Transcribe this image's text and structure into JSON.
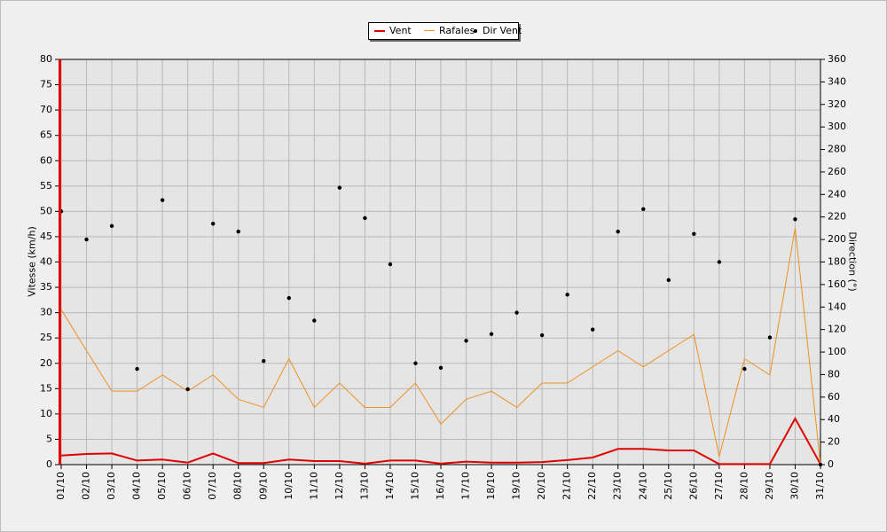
{
  "chart_data": {
    "type": "line",
    "categories": [
      "01/10",
      "02/10",
      "03/10",
      "04/10",
      "05/10",
      "06/10",
      "07/10",
      "08/10",
      "09/10",
      "10/10",
      "11/10",
      "12/10",
      "13/10",
      "14/10",
      "15/10",
      "16/10",
      "17/10",
      "18/10",
      "19/10",
      "20/10",
      "21/10",
      "22/10",
      "23/10",
      "24/10",
      "25/10",
      "26/10",
      "27/10",
      "28/10",
      "29/10",
      "30/10",
      "31/10"
    ],
    "series": [
      {
        "name": "Vent",
        "axis": "left",
        "color": "#e00000",
        "values": [
          1.8,
          2.1,
          2.2,
          0.8,
          1.0,
          0.4,
          2.2,
          0.3,
          0.3,
          1.0,
          0.7,
          0.7,
          0.2,
          0.8,
          0.8,
          0.2,
          0.6,
          0.4,
          0.4,
          0.5,
          0.9,
          1.4,
          3.1,
          3.1,
          2.8,
          2.8,
          0.1,
          0.1,
          0.1,
          9.1,
          0.1
        ]
      },
      {
        "name": "Rafales",
        "axis": "left",
        "color": "#f09020",
        "values": [
          30.6,
          22.5,
          14.5,
          14.5,
          17.7,
          14.5,
          17.7,
          12.9,
          11.3,
          20.9,
          11.3,
          16.1,
          11.3,
          11.3,
          16.1,
          8.0,
          12.9,
          14.5,
          11.3,
          16.1,
          16.1,
          19.3,
          22.5,
          19.3,
          22.5,
          25.7,
          1.6,
          20.9,
          17.7,
          46.7,
          0.0
        ]
      },
      {
        "name": "Dir Vent",
        "axis": "right",
        "color": "#000000",
        "marker": "dot",
        "values": [
          225,
          200,
          212,
          85,
          235,
          67,
          214,
          207,
          92,
          148,
          128,
          246,
          219,
          178,
          90,
          86,
          110,
          116,
          135,
          115,
          151,
          120,
          207,
          227,
          164,
          205,
          180,
          85,
          113,
          218,
          0
        ]
      }
    ],
    "ylabel": "Vitesse (km/h)",
    "ylabel_right": "Direction (°)",
    "ylim": [
      0,
      80
    ],
    "yticks": [
      0,
      5,
      10,
      15,
      20,
      25,
      30,
      35,
      40,
      45,
      50,
      55,
      60,
      65,
      70,
      75,
      80
    ],
    "ylim_right": [
      0,
      360
    ],
    "yticks_right": [
      0,
      20,
      40,
      60,
      80,
      100,
      120,
      140,
      160,
      180,
      200,
      220,
      240,
      260,
      280,
      300,
      320,
      340,
      360
    ],
    "grid": true,
    "legend_position": "top-center"
  },
  "legend": [
    {
      "label": "Vent"
    },
    {
      "label": "Rafales"
    },
    {
      "label": "Dir Vent"
    }
  ],
  "colors": {
    "plot_bg": "#e5e5e5",
    "grid": "#b8b8b8",
    "page_bg": "#efefef"
  }
}
